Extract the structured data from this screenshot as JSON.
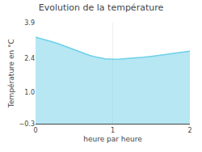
{
  "chart_data": {
    "type": "area",
    "title": "Evolution de la température",
    "xlabel": "heure par heure",
    "ylabel": "Température en °C",
    "x": [
      0,
      0.1,
      0.2,
      0.3,
      0.4,
      0.5,
      0.6,
      0.7,
      0.8,
      0.9,
      1.0,
      1.05,
      1.1,
      1.2,
      1.3,
      1.4,
      1.5,
      1.6,
      1.7,
      1.8,
      1.9,
      2.0
    ],
    "values": [
      3.3,
      3.22,
      3.12,
      3.02,
      2.9,
      2.78,
      2.65,
      2.54,
      2.46,
      2.4,
      2.38,
      2.38,
      2.39,
      2.41,
      2.43,
      2.46,
      2.5,
      2.54,
      2.58,
      2.62,
      2.67,
      2.72
    ],
    "color": "#6dd0e8",
    "xlim": [
      0,
      2
    ],
    "ylim": [
      -0.3,
      3.9
    ],
    "xticks": [
      0,
      1,
      2
    ],
    "yticks": [
      {
        "value": -0.3,
        "label": "−0.3"
      },
      {
        "value": 1.0,
        "label": "1.0"
      },
      {
        "value": 2.4,
        "label": "2.4"
      },
      {
        "value": 3.9,
        "label": "3.9"
      }
    ],
    "grid": "x"
  }
}
